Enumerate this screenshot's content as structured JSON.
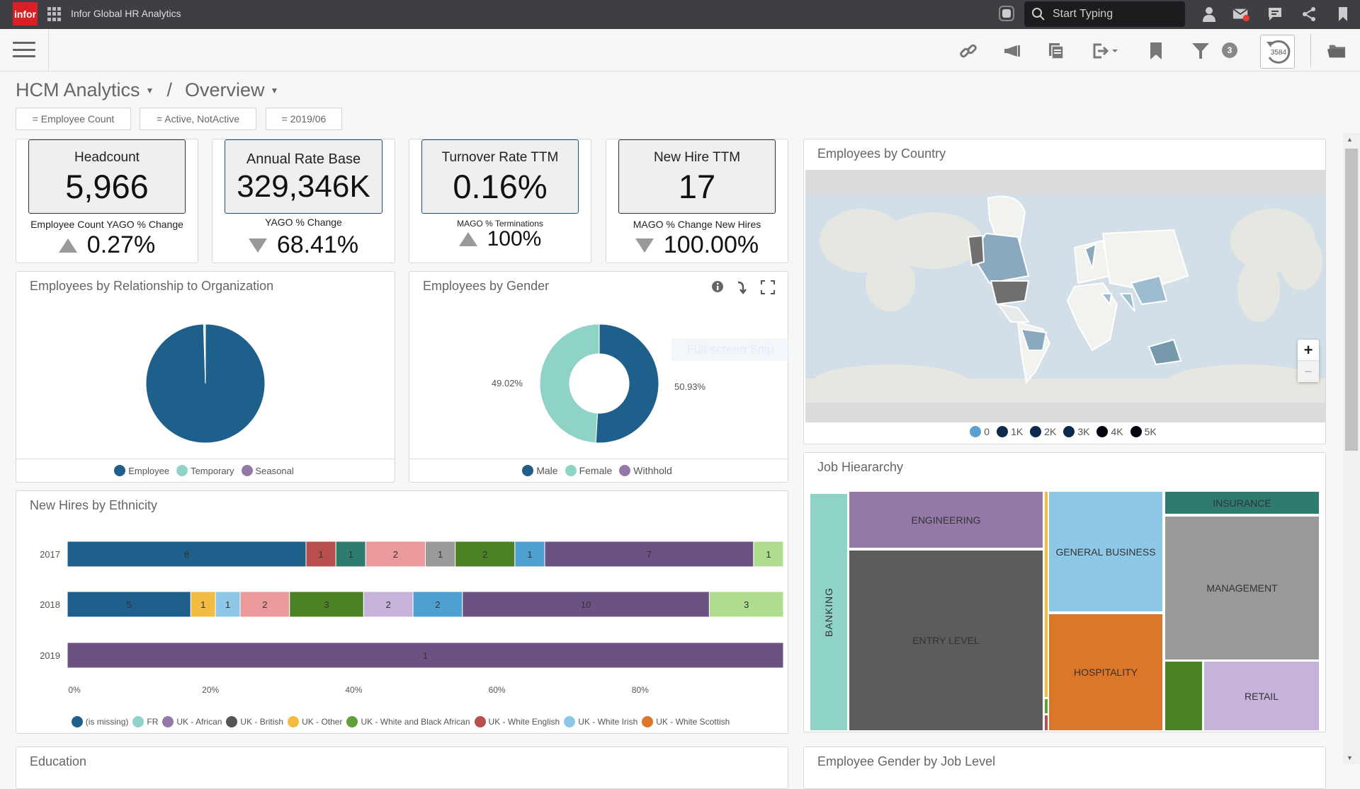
{
  "topbar": {
    "logo": "infor",
    "app_title": "Infor Global HR Analytics",
    "search_placeholder": "Start Typing"
  },
  "toolbar": {
    "filter_count": "3",
    "refresh_count": "3584"
  },
  "breadcrumb": {
    "section": "HCM Analytics",
    "separator": "/",
    "page": "Overview"
  },
  "filters": [
    "= Employee Count",
    "= Active, NotActive",
    "= 2019/06"
  ],
  "kpis": [
    {
      "label": "Headcount",
      "value": "5,966",
      "sub_label": "Employee Count YAGO % Change",
      "change": "0.27%",
      "direction": "up"
    },
    {
      "label": "Annual Rate Base",
      "value": "329,346K",
      "sub_label": "YAGO % Change",
      "change": "68.41%",
      "direction": "down"
    },
    {
      "label": "Turnover Rate TTM",
      "value": "0.16%",
      "sub_label": "MAGO % Terminations",
      "change": "100%",
      "direction": "up"
    },
    {
      "label": "New Hire TTM",
      "value": "17",
      "sub_label": "MAGO % Change New Hires",
      "change": "100.00%",
      "direction": "down"
    }
  ],
  "colors": {
    "accent": "#1f5f8b",
    "topbar": "#3e3f44",
    "logo": "#da1f26"
  },
  "chart_data": [
    {
      "type": "pie",
      "title": "Employees by Relationship to Organization",
      "series": [
        {
          "name": "Employee",
          "value": 99.5,
          "color": "#1f5f8b"
        },
        {
          "name": "Temporary",
          "value": 0.3,
          "color": "#8fd3c7"
        },
        {
          "name": "Seasonal",
          "value": 0.2,
          "color": "#9479a8"
        }
      ]
    },
    {
      "type": "pie",
      "subtype": "donut",
      "title": "Employees by Gender",
      "series": [
        {
          "name": "Male",
          "value": 50.93,
          "label": "50.93%",
          "color": "#1f5f8b"
        },
        {
          "name": "Female",
          "value": 49.02,
          "label": "49.02%",
          "color": "#8fd3c7"
        },
        {
          "name": "Withhold",
          "value": 0.05,
          "color": "#9479a8"
        }
      ],
      "tooltip": "Full-screen Snip"
    },
    {
      "type": "bar",
      "orientation": "horizontal",
      "stacked": "percent",
      "title": "New Hires by Ethnicity",
      "categories": [
        "2017",
        "2018",
        "2019"
      ],
      "xticks": [
        "0%",
        "20%",
        "40%",
        "60%",
        "80%"
      ],
      "rows": [
        [
          {
            "v": 8,
            "c": "#1f5f8b"
          },
          {
            "v": 1,
            "c": "#b94e4e"
          },
          {
            "v": 1,
            "c": "#2e7b70"
          },
          {
            "v": 2,
            "c": "#ea9a9a"
          },
          {
            "v": 1,
            "c": "#9a9a9a"
          },
          {
            "v": 2,
            "c": "#4a8224"
          },
          {
            "v": 1,
            "c": "#4fa0d2"
          },
          {
            "v": 7,
            "c": "#6c5282"
          },
          {
            "v": 1,
            "c": "#b0dc8e"
          }
        ],
        [
          {
            "v": 5,
            "c": "#1f5f8b"
          },
          {
            "v": 1,
            "c": "#f2bc42"
          },
          {
            "v": 1,
            "c": "#8ec8e6"
          },
          {
            "v": 2,
            "c": "#ea9a9a"
          },
          {
            "v": 3,
            "c": "#4a8224"
          },
          {
            "v": 2,
            "c": "#c6b3da"
          },
          {
            "v": 2,
            "c": "#4fa0d2"
          },
          {
            "v": 10,
            "c": "#6c5282"
          },
          {
            "v": 3,
            "c": "#b0dc8e"
          }
        ],
        [
          {
            "v": 1,
            "c": "#6c5282"
          }
        ]
      ],
      "legend": [
        {
          "name": "(is missing)",
          "color": "#1f5f8b"
        },
        {
          "name": "FR",
          "color": "#8fd3c7"
        },
        {
          "name": "UK - African",
          "color": "#9479a8"
        },
        {
          "name": "UK - British",
          "color": "#555555"
        },
        {
          "name": "UK - Other",
          "color": "#f2bc42"
        },
        {
          "name": "UK - White and Black African",
          "color": "#5fa03b"
        },
        {
          "name": "UK - White English",
          "color": "#b94e4e"
        },
        {
          "name": "UK - White Irish",
          "color": "#8ec8e6"
        },
        {
          "name": "UK - White Scottish",
          "color": "#dc7628"
        }
      ]
    },
    {
      "type": "map",
      "title": "Employees by Country",
      "legend": [
        {
          "name": "0",
          "color": "#5ba0cf"
        },
        {
          "name": "1K",
          "color": "#0d2a4e"
        },
        {
          "name": "2K",
          "color": "#0d2a4e"
        },
        {
          "name": "3K",
          "color": "#0d2a4e"
        },
        {
          "name": "4K",
          "color": "#050510"
        },
        {
          "name": "5K",
          "color": "#050510"
        }
      ]
    },
    {
      "type": "treemap",
      "title": "Job Hieararchy",
      "items": [
        {
          "name": "BANKING",
          "color": "#8fd3c7"
        },
        {
          "name": "ENGINEERING",
          "color": "#9479a8"
        },
        {
          "name": "ENTRY LEVEL",
          "color": "#5c5c5c"
        },
        {
          "name": "GENERAL BUSINESS",
          "color": "#8ec8e6"
        },
        {
          "name": "HOSPITALITY",
          "color": "#dc7628"
        },
        {
          "name": "INSURANCE",
          "color": "#2e7b70"
        },
        {
          "name": "MANAGEMENT",
          "color": "#999999"
        },
        {
          "name": "RETAIL",
          "color": "#c6b3da"
        }
      ]
    }
  ],
  "panels": {
    "education": "Education",
    "gender_by_level": "Employee Gender by Job Level"
  },
  "map_controls": {
    "zoom_in": "+",
    "zoom_out": "−"
  }
}
